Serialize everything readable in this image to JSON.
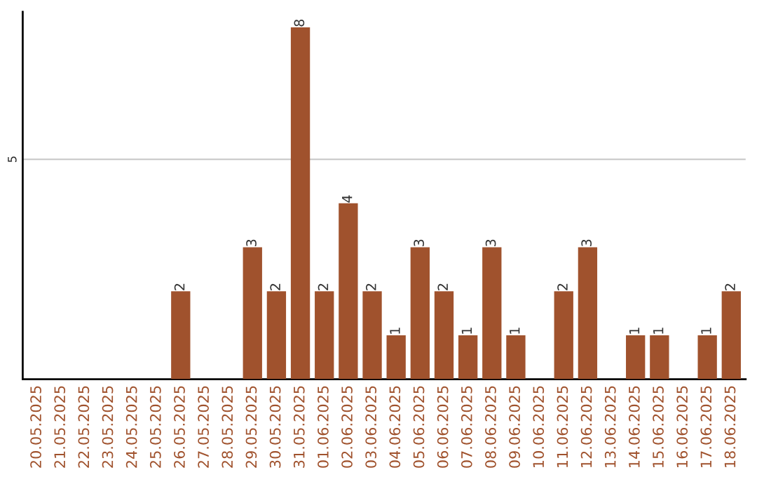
{
  "chart_data": {
    "type": "bar",
    "categories": [
      "20.05.2025",
      "21.05.2025",
      "22.05.2025",
      "23.05.2025",
      "24.05.2025",
      "25.05.2025",
      "26.05.2025",
      "27.05.2025",
      "28.05.2025",
      "29.05.2025",
      "30.05.2025",
      "31.05.2025",
      "01.06.2025",
      "02.06.2025",
      "03.06.2025",
      "04.06.2025",
      "05.06.2025",
      "06.06.2025",
      "07.06.2025",
      "08.06.2025",
      "09.06.2025",
      "10.06.2025",
      "11.06.2025",
      "12.06.2025",
      "13.06.2025",
      "14.06.2025",
      "15.06.2025",
      "16.06.2025",
      "17.06.2025",
      "18.06.2025"
    ],
    "values": [
      0,
      0,
      0,
      0,
      0,
      0,
      2,
      0,
      0,
      3,
      2,
      8,
      2,
      4,
      2,
      1,
      3,
      2,
      1,
      3,
      1,
      0,
      2,
      3,
      0,
      1,
      1,
      0,
      1,
      2
    ],
    "value_labels": [
      null,
      null,
      null,
      null,
      null,
      null,
      "2",
      null,
      null,
      "3",
      "2",
      "8",
      "2",
      "4",
      "2",
      "1",
      "3",
      "2",
      "1",
      "3",
      "1",
      null,
      "2",
      "3",
      null,
      "1",
      "1",
      null,
      "1",
      "2"
    ],
    "color": "#a0522d",
    "ylim": [
      0,
      8.35
    ],
    "yticks": [
      5
    ],
    "grid": "y"
  }
}
